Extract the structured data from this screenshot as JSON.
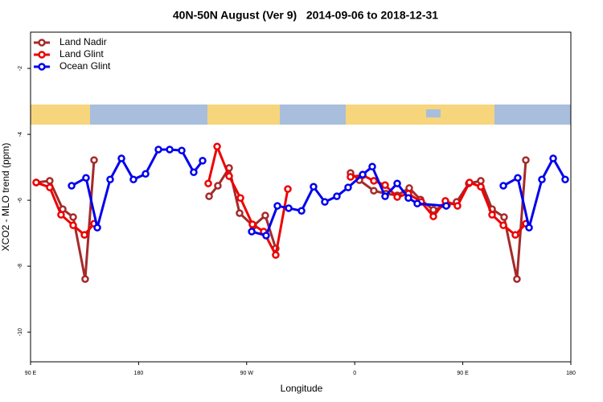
{
  "chart_data": {
    "type": "line",
    "title": "40N-50N August (Ver 9)   2014-09-06 to 2018-12-31",
    "xlabel": "Longitude",
    "ylabel": "XCO2 - MLO trend (ppm)",
    "xlim": [
      90,
      540
    ],
    "ylim": [
      -10.9,
      -0.9
    ],
    "xticks": [
      {
        "value": 90,
        "label": "90 E"
      },
      {
        "value": 180,
        "label": "180"
      },
      {
        "value": 270,
        "label": "90 W"
      },
      {
        "value": 360,
        "label": "0"
      },
      {
        "value": 450,
        "label": "90 E"
      },
      {
        "value": 540,
        "label": "180"
      }
    ],
    "yticks": [
      -2,
      -4,
      -6,
      -8,
      -10
    ],
    "legend": "top-left",
    "series": [
      {
        "name": "Land Nadir",
        "color": "#a52a2a",
        "x": [
          94.7,
          106,
          116.8,
          125.5,
          135.5,
          142.9,
          null,
          238.7,
          246,
          255.4,
          264.1,
          275.5,
          285.5,
          294.2,
          null,
          356.5,
          363.9,
          375.9,
          386,
          395.4,
          405.4,
          414.8,
          425.5,
          436.9,
          444.9,
          455,
          465,
          474.4,
          484.4,
          495.1,
          502.5
        ],
        "values": [
          -5.46,
          -5.41,
          -6.27,
          -6.51,
          -8.39,
          -4.78,
          null,
          -5.88,
          -5.56,
          -5.02,
          -6.39,
          -6.78,
          -6.46,
          -7.46,
          null,
          -5.17,
          -5.39,
          -5.71,
          -5.8,
          -5.85,
          -5.63,
          -5.98,
          -6.29,
          -6.15,
          -6.05,
          -5.49,
          -5.41,
          -6.27,
          -6.51,
          -8.39,
          -4.78
        ]
      },
      {
        "name": "Land Glint",
        "color": "#ee0000",
        "x": [
          94.7,
          106,
          115.4,
          125.5,
          134.9,
          142.9,
          null,
          238,
          245.4,
          255.4,
          264.8,
          274.8,
          284.2,
          294.2,
          304.3,
          null,
          356.5,
          366.6,
          375.9,
          385.3,
          395.4,
          404.7,
          415.4,
          425.5,
          435.5,
          445.6,
          455.6,
          465,
          474.4,
          483.8,
          493.8,
          502.5
        ],
        "values": [
          -5.46,
          -5.61,
          -6.44,
          -6.76,
          -7.05,
          -6.71,
          null,
          -5.49,
          -4.37,
          -5.27,
          -5.93,
          -6.73,
          -6.95,
          -7.66,
          -5.66,
          null,
          -5.29,
          -5.24,
          -5.41,
          -5.54,
          -5.9,
          -5.8,
          -6.05,
          -6.49,
          -6.02,
          -6.17,
          -5.46,
          -5.59,
          -6.44,
          -6.76,
          -7.05,
          -6.71
        ]
      },
      {
        "name": "Ocean Glint",
        "color": "#0000ee",
        "x": [
          124.2,
          136.2,
          145.6,
          156.3,
          165.7,
          175.7,
          185.8,
          196.5,
          205.9,
          215.9,
          225.9,
          233.3,
          null,
          274.2,
          286.2,
          295.6,
          305,
          315.7,
          325.7,
          335.1,
          345.1,
          354.5,
          366.6,
          374.6,
          385.3,
          395.4,
          404.7,
          412.1,
          436.2,
          null,
          483.8,
          495.8,
          505.2,
          515.9,
          525.3,
          535.3
        ],
        "values": [
          -5.56,
          -5.32,
          -6.83,
          -5.37,
          -4.73,
          -5.37,
          -5.2,
          -4.46,
          -4.46,
          -4.49,
          -5.15,
          -4.8,
          null,
          -6.95,
          -7.07,
          -6.17,
          -6.24,
          -6.32,
          -5.59,
          -6.05,
          -5.88,
          -5.61,
          -5.22,
          -4.98,
          -5.88,
          -5.49,
          -5.93,
          -6.1,
          -6.17,
          null,
          -5.56,
          -5.32,
          -6.83,
          -5.37,
          -4.73,
          -5.37
        ]
      }
    ]
  }
}
